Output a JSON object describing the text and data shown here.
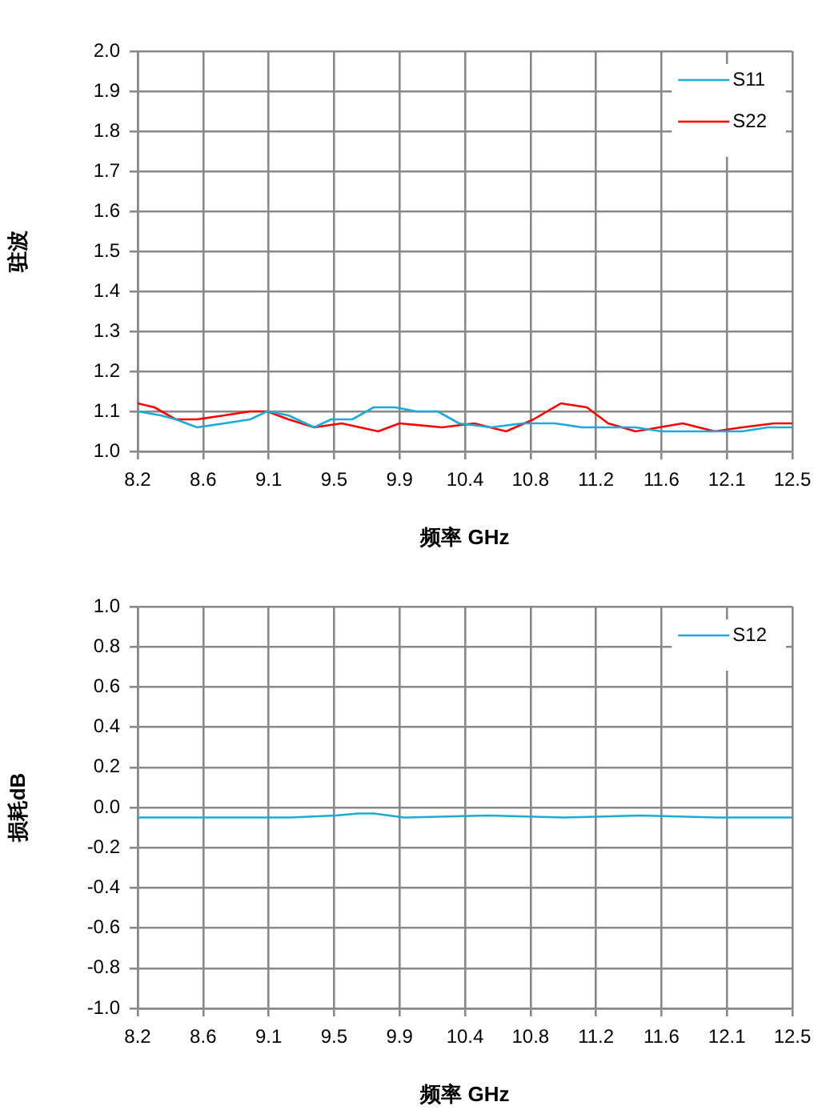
{
  "chart_data": [
    {
      "type": "line",
      "xlabel": "频率 GHz",
      "ylabel": "驻波",
      "xlim": [
        8.2,
        12.5
      ],
      "ylim": [
        1.0,
        2.0
      ],
      "xticks": [
        {
          "value": 8.2,
          "label": "8.2"
        },
        {
          "value": 8.63,
          "label": "8.6"
        },
        {
          "value": 9.06,
          "label": "9.1"
        },
        {
          "value": 9.49,
          "label": "9.5"
        },
        {
          "value": 9.92,
          "label": "9.9"
        },
        {
          "value": 10.35,
          "label": "10.4"
        },
        {
          "value": 10.78,
          "label": "10.8"
        },
        {
          "value": 11.21,
          "label": "11.2"
        },
        {
          "value": 11.64,
          "label": "11.6"
        },
        {
          "value": 12.07,
          "label": "12.1"
        },
        {
          "value": 12.5,
          "label": "12.5"
        }
      ],
      "yticks": [
        {
          "value": 1.0,
          "label": "1.0"
        },
        {
          "value": 1.1,
          "label": "1.1"
        },
        {
          "value": 1.2,
          "label": "1.2"
        },
        {
          "value": 1.3,
          "label": "1.3"
        },
        {
          "value": 1.4,
          "label": "1.4"
        },
        {
          "value": 1.5,
          "label": "1.5"
        },
        {
          "value": 1.6,
          "label": "1.6"
        },
        {
          "value": 1.7,
          "label": "1.7"
        },
        {
          "value": 1.8,
          "label": "1.8"
        },
        {
          "value": 1.9,
          "label": "1.9"
        },
        {
          "value": 2.0,
          "label": "2.0"
        }
      ],
      "grid": true,
      "legend": "top right",
      "marker": "none",
      "line_style": "solid",
      "series": [
        {
          "name": "S11",
          "color": "#1aabdb",
          "x": [
            8.2,
            8.35,
            8.45,
            8.59,
            8.77,
            8.94,
            9.05,
            9.19,
            9.36,
            9.47,
            9.61,
            9.75,
            9.89,
            10.03,
            10.17,
            10.31,
            10.52,
            10.73,
            10.94,
            11.12,
            11.29,
            11.47,
            11.64,
            11.99,
            12.17,
            12.34,
            12.5
          ],
          "values": [
            1.1,
            1.09,
            1.08,
            1.06,
            1.07,
            1.08,
            1.1,
            1.09,
            1.06,
            1.08,
            1.08,
            1.11,
            1.11,
            1.1,
            1.1,
            1.07,
            1.06,
            1.07,
            1.07,
            1.06,
            1.06,
            1.06,
            1.05,
            1.05,
            1.05,
            1.06,
            1.06
          ]
        },
        {
          "name": "S22",
          "color": "#ff0000",
          "x": [
            8.2,
            8.31,
            8.45,
            8.59,
            8.77,
            8.94,
            9.05,
            9.19,
            9.36,
            9.54,
            9.78,
            9.92,
            10.2,
            10.41,
            10.62,
            10.8,
            10.98,
            11.15,
            11.29,
            11.47,
            11.78,
            11.99,
            12.17,
            12.38,
            12.5
          ],
          "values": [
            1.12,
            1.11,
            1.08,
            1.08,
            1.09,
            1.1,
            1.1,
            1.08,
            1.06,
            1.07,
            1.05,
            1.07,
            1.06,
            1.07,
            1.05,
            1.08,
            1.12,
            1.11,
            1.07,
            1.05,
            1.07,
            1.05,
            1.06,
            1.07,
            1.07
          ]
        }
      ]
    },
    {
      "type": "line",
      "xlabel": "频率 GHz",
      "ylabel": "损耗dB",
      "xlim": [
        8.2,
        12.5
      ],
      "ylim": [
        -1.0,
        1.0
      ],
      "xticks": [
        {
          "value": 8.2,
          "label": "8.2"
        },
        {
          "value": 8.63,
          "label": "8.6"
        },
        {
          "value": 9.06,
          "label": "9.1"
        },
        {
          "value": 9.49,
          "label": "9.5"
        },
        {
          "value": 9.92,
          "label": "9.9"
        },
        {
          "value": 10.35,
          "label": "10.4"
        },
        {
          "value": 10.78,
          "label": "10.8"
        },
        {
          "value": 11.21,
          "label": "11.2"
        },
        {
          "value": 11.64,
          "label": "11.6"
        },
        {
          "value": 12.07,
          "label": "12.1"
        },
        {
          "value": 12.5,
          "label": "12.5"
        }
      ],
      "yticks": [
        {
          "value": -1.0,
          "label": "-1.0"
        },
        {
          "value": -0.8,
          "label": "-0.8"
        },
        {
          "value": -0.6,
          "label": "-0.6"
        },
        {
          "value": -0.4,
          "label": "-0.4"
        },
        {
          "value": -0.2,
          "label": "-0.2"
        },
        {
          "value": 0,
          "label": "0.0"
        },
        {
          "value": 0.2,
          "label": "0.2"
        },
        {
          "value": 0.4,
          "label": "0.4"
        },
        {
          "value": 0.6,
          "label": "0.6"
        },
        {
          "value": 0.8,
          "label": "0.8"
        },
        {
          "value": 1.0,
          "label": "1.0"
        }
      ],
      "grid": true,
      "legend": "top right",
      "marker": "none",
      "line_style": "solid",
      "series": [
        {
          "name": "S12",
          "color": "#1aabdb",
          "x": [
            8.2,
            8.8,
            9.2,
            9.5,
            9.65,
            9.75,
            9.85,
            9.95,
            10.5,
            11.0,
            11.5,
            12.0,
            12.5
          ],
          "values": [
            -0.05,
            -0.05,
            -0.05,
            -0.04,
            -0.03,
            -0.03,
            -0.04,
            -0.05,
            -0.04,
            -0.05,
            -0.04,
            -0.05,
            -0.05
          ]
        }
      ]
    }
  ]
}
